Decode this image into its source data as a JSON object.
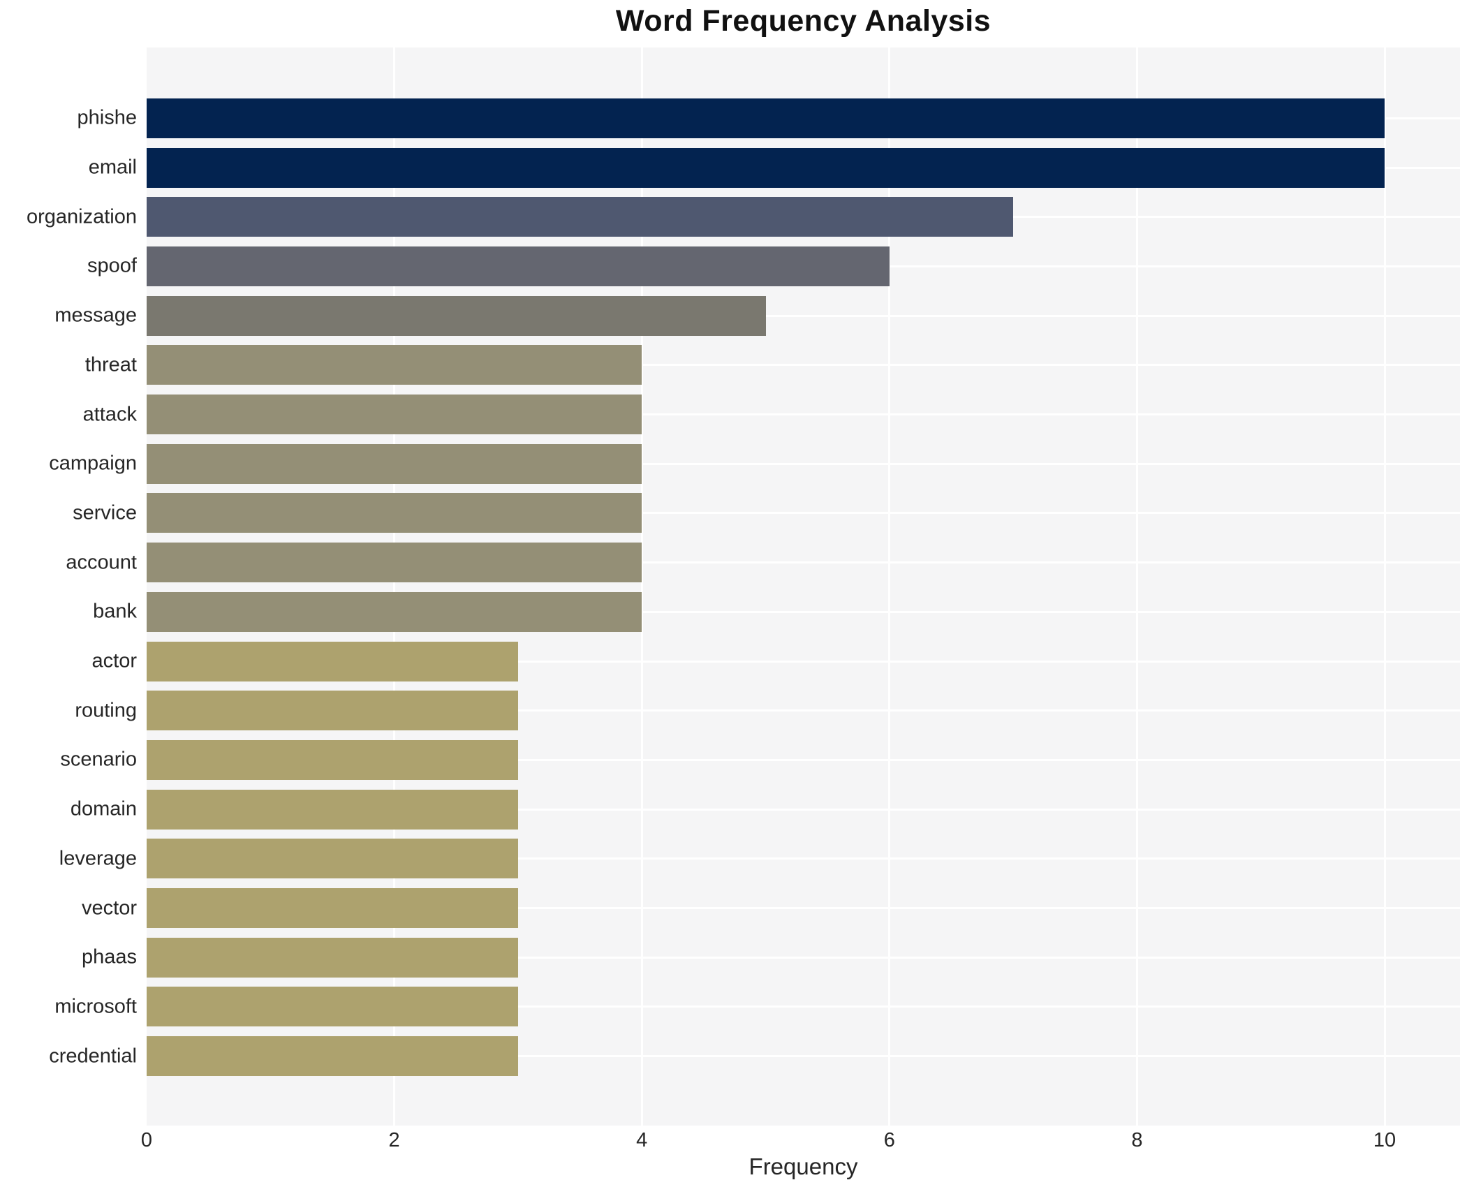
{
  "chart_data": {
    "type": "bar",
    "orientation": "horizontal",
    "title": "Word Frequency Analysis",
    "xlabel": "Frequency",
    "ylabel": "",
    "xlim": [
      0,
      10.6
    ],
    "x_ticks": [
      0,
      2,
      4,
      6,
      8,
      10
    ],
    "grid": true,
    "legend": false,
    "categories": [
      "phishe",
      "email",
      "organization",
      "spoof",
      "message",
      "threat",
      "attack",
      "campaign",
      "service",
      "account",
      "bank",
      "actor",
      "routing",
      "scenario",
      "domain",
      "leverage",
      "vector",
      "phaas",
      "microsoft",
      "credential"
    ],
    "values": [
      10,
      10,
      7,
      6,
      5,
      4,
      4,
      4,
      4,
      4,
      4,
      3,
      3,
      3,
      3,
      3,
      3,
      3,
      3,
      3
    ],
    "bar_colors": [
      "#032350",
      "#032350",
      "#4f5870",
      "#646670",
      "#7a786f",
      "#948f76",
      "#948f76",
      "#948f76",
      "#948f76",
      "#948f76",
      "#948f76",
      "#ada26e",
      "#ada26e",
      "#ada26e",
      "#ada26e",
      "#ada26e",
      "#ada26e",
      "#ada26e",
      "#ada26e",
      "#ada26e"
    ],
    "colors": {
      "figure_bg": "#ffffff",
      "plot_bg": "#f5f5f6",
      "gridline": "#ffffff",
      "text": "#262626",
      "title_text": "#111111"
    }
  }
}
